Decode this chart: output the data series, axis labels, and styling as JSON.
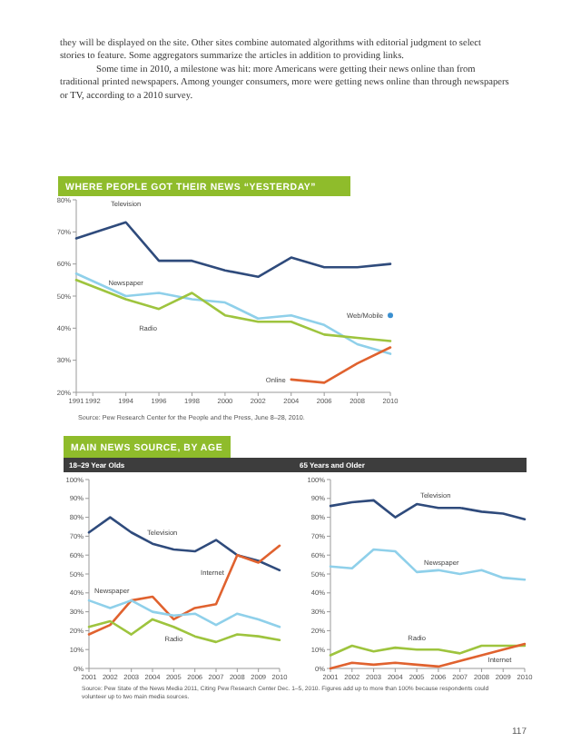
{
  "chart_data": [
    {
      "type": "other",
      "annotations": [
        "they will be displayed on the site. Other sites combine automated algorithms with editorial judgment to select stories to feature. Some aggregators summarize the articles in addition to providing links.",
        "Some time in 2010, a milestone was hit: more Americans were getting their news online than from traditional printed newspapers. Among younger consumers, more were getting news online than through newspapers or TV, according to a 2010 survey."
      ]
    },
    {
      "type": "line",
      "title": "WHERE PEOPLE GOT THEIR NEWS “YESTERDAY”",
      "x": [
        1991,
        1994,
        1996,
        1998,
        2000,
        2002,
        2004,
        2006,
        2008,
        2010
      ],
      "xlim": [
        1991,
        2010
      ],
      "xticks": [
        1991,
        1992,
        1994,
        1996,
        1998,
        2000,
        2002,
        2004,
        2006,
        2008,
        2010
      ],
      "ylim": [
        20,
        80
      ],
      "yticks": [
        {
          "value": 20,
          "label": "20%"
        },
        {
          "value": 30,
          "label": "30%"
        },
        {
          "value": 40,
          "label": "40%"
        },
        {
          "value": 50,
          "label": "50%"
        },
        {
          "value": 60,
          "label": "60%"
        },
        {
          "value": 70,
          "label": "70%"
        },
        {
          "value": 80,
          "label": "80%"
        }
      ],
      "annotations": [
        "Source: Pew Research Center for the People and the Press, June 8–28, 2010."
      ],
      "series": [
        {
          "name": "Television",
          "color": "#2f4b7c",
          "values": [
            68,
            73,
            61,
            61,
            58,
            56,
            62,
            59,
            59,
            60
          ]
        },
        {
          "name": "Newspaper",
          "color": "#8fd0ea",
          "values": [
            57,
            50,
            51,
            49,
            48,
            43,
            44,
            41,
            35,
            32
          ]
        },
        {
          "name": "Radio",
          "color": "#9ec43e",
          "values": [
            55,
            49,
            46,
            51,
            44,
            42,
            42,
            38,
            37,
            36
          ]
        },
        {
          "name": "Online",
          "color": "#e0622f",
          "x": [
            2004,
            2006,
            2008,
            2010
          ],
          "values": [
            24,
            23,
            29,
            34
          ]
        },
        {
          "name": "Web/Mobile",
          "type": "scatter",
          "color": "#3a8fd0",
          "x": [
            2010
          ],
          "values": [
            44
          ]
        }
      ]
    },
    {
      "type": "line",
      "title": "MAIN NEWS SOURCE, BY AGE",
      "subtitle": "18–29 Year Olds",
      "x": [
        2001,
        2002,
        2003,
        2004,
        2005,
        2006,
        2007,
        2008,
        2009,
        2010
      ],
      "xlim": [
        2001,
        2010
      ],
      "xticks": [
        2001,
        2002,
        2003,
        2004,
        2005,
        2006,
        2007,
        2008,
        2009,
        2010
      ],
      "ylim": [
        0,
        100
      ],
      "yticks": [
        {
          "value": 0,
          "label": "0%"
        },
        {
          "value": 10,
          "label": "10%"
        },
        {
          "value": 20,
          "label": "20%"
        },
        {
          "value": 30,
          "label": "30%"
        },
        {
          "value": 40,
          "label": "40%"
        },
        {
          "value": 50,
          "label": "50%"
        },
        {
          "value": 60,
          "label": "60%"
        },
        {
          "value": 70,
          "label": "70%"
        },
        {
          "value": 80,
          "label": "80%"
        },
        {
          "value": 90,
          "label": "90%"
        },
        {
          "value": 100,
          "label": "100%"
        }
      ],
      "annotations": [
        "Source: Pew State of the News Media 2011, Citing Pew Research Center Dec. 1–5, 2010. Figures add up to more than 100% because respondents could volunteer up to two main media sources."
      ],
      "series": [
        {
          "name": "Television",
          "color": "#2f4b7c",
          "values": [
            72,
            80,
            72,
            66,
            63,
            62,
            68,
            60,
            57,
            52
          ]
        },
        {
          "name": "Internet",
          "color": "#e0622f",
          "values": [
            18,
            23,
            36,
            38,
            26,
            32,
            34,
            60,
            56,
            65
          ]
        },
        {
          "name": "Newspaper",
          "color": "#8fd0ea",
          "values": [
            36,
            32,
            36,
            30,
            28,
            29,
            23,
            29,
            26,
            22
          ]
        },
        {
          "name": "Radio",
          "color": "#9ec43e",
          "values": [
            22,
            25,
            18,
            26,
            22,
            17,
            14,
            18,
            17,
            15
          ]
        }
      ]
    },
    {
      "type": "line",
      "subtitle": "65 Years and Older",
      "x": [
        2001,
        2002,
        2003,
        2004,
        2005,
        2006,
        2007,
        2008,
        2009,
        2010
      ],
      "xlim": [
        2001,
        2010
      ],
      "xticks": [
        2001,
        2002,
        2003,
        2004,
        2005,
        2006,
        2007,
        2008,
        2009,
        2010
      ],
      "ylim": [
        0,
        100
      ],
      "yticks": [
        {
          "value": 0,
          "label": "0%"
        },
        {
          "value": 10,
          "label": "10%"
        },
        {
          "value": 20,
          "label": "20%"
        },
        {
          "value": 30,
          "label": "30%"
        },
        {
          "value": 40,
          "label": "40%"
        },
        {
          "value": 50,
          "label": "50%"
        },
        {
          "value": 60,
          "label": "60%"
        },
        {
          "value": 70,
          "label": "70%"
        },
        {
          "value": 80,
          "label": "80%"
        },
        {
          "value": 90,
          "label": "90%"
        },
        {
          "value": 100,
          "label": "100%"
        }
      ],
      "annotations": [
        "117"
      ],
      "series": [
        {
          "name": "Television",
          "color": "#2f4b7c",
          "values": [
            86,
            88,
            89,
            80,
            87,
            85,
            85,
            83,
            82,
            79
          ]
        },
        {
          "name": "Newspaper",
          "color": "#8fd0ea",
          "values": [
            54,
            53,
            63,
            62,
            51,
            52,
            50,
            52,
            48,
            47
          ]
        },
        {
          "name": "Radio",
          "color": "#9ec43e",
          "values": [
            7,
            12,
            9,
            11,
            10,
            10,
            8,
            12,
            12,
            12
          ]
        },
        {
          "name": "Internet",
          "color": "#e0622f",
          "values": [
            0,
            3,
            2,
            3,
            2,
            1,
            4,
            7,
            10,
            13
          ]
        }
      ]
    }
  ]
}
